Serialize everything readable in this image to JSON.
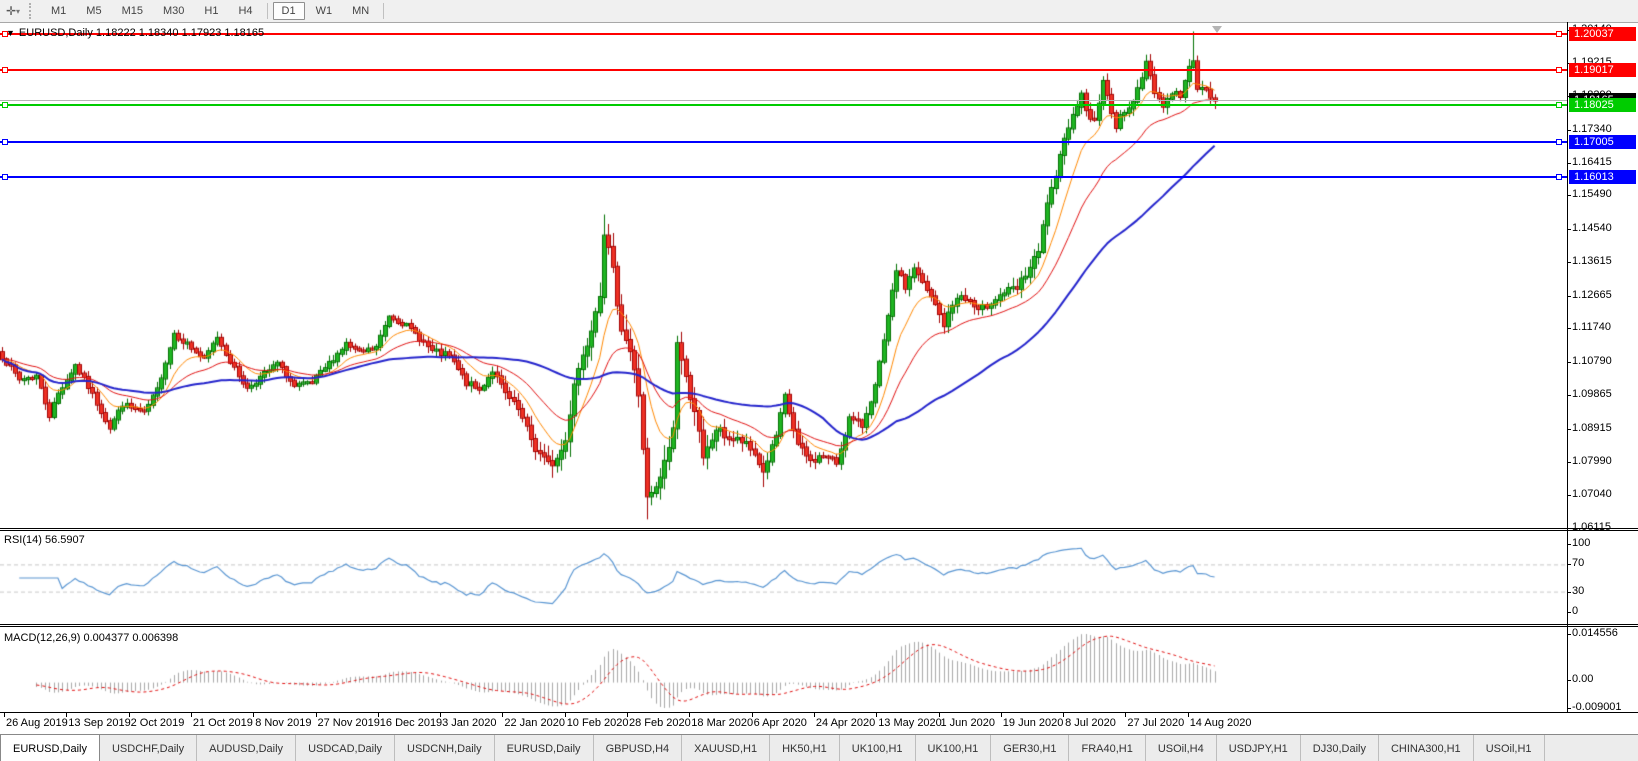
{
  "toolbar": {
    "cursor_icon": "crosshair-tool-icon",
    "timeframes": [
      "M1",
      "M5",
      "M15",
      "M30",
      "H1",
      "H4",
      "D1",
      "W1",
      "MN"
    ],
    "active_timeframe": "D1"
  },
  "chart": {
    "title": "EURUSD,Daily  1.18222 1.18340 1.17923 1.18165",
    "symbol": "EURUSD,Daily",
    "ohlc": {
      "open": "1.18222",
      "high": "1.18340",
      "low": "1.17923",
      "close": "1.18165"
    }
  },
  "chart_data": {
    "type": "candlestick",
    "title": "EURUSD,Daily",
    "main": {
      "y_ticks": [
        "1.20140",
        "1.19215",
        "1.18290",
        "1.17340",
        "1.16415",
        "1.15490",
        "1.14540",
        "1.13615",
        "1.12665",
        "1.11740",
        "1.10790",
        "1.09865",
        "1.08915",
        "1.07990",
        "1.07040",
        "1.06115"
      ],
      "levels": [
        {
          "price": 1.20037,
          "label": "1.20037",
          "color": "#ff0000"
        },
        {
          "price": 1.19017,
          "label": "1.19017",
          "color": "#ff0000"
        },
        {
          "price": 1.18025,
          "label": "1.18025",
          "color": "#00cc00"
        },
        {
          "price": 1.17005,
          "label": "1.17005",
          "color": "#0000ff"
        },
        {
          "price": 1.16013,
          "label": "1.16013",
          "color": "#0000ff"
        }
      ],
      "current_price": {
        "value": 1.18165,
        "label": "1.18165",
        "line_color": "#b4b4b4",
        "badge_color": "#000000"
      },
      "candle_count": 283,
      "close_keyframes": [
        [
          0,
          1.1095
        ],
        [
          4,
          1.103
        ],
        [
          8,
          1.104
        ],
        [
          11,
          1.093
        ],
        [
          13,
          1.099
        ],
        [
          17,
          1.107
        ],
        [
          20,
          1.101
        ],
        [
          25,
          1.0895
        ],
        [
          28,
          1.096
        ],
        [
          33,
          1.0935
        ],
        [
          36,
          1.1
        ],
        [
          40,
          1.116
        ],
        [
          43,
          1.113
        ],
        [
          47,
          1.1085
        ],
        [
          50,
          1.115
        ],
        [
          54,
          1.106
        ],
        [
          57,
          1.1005
        ],
        [
          61,
          1.1045
        ],
        [
          64,
          1.1075
        ],
        [
          68,
          1.101
        ],
        [
          72,
          1.102
        ],
        [
          76,
          1.1075
        ],
        [
          80,
          1.113
        ],
        [
          83,
          1.1105
        ],
        [
          87,
          1.112
        ],
        [
          90,
          1.121
        ],
        [
          93,
          1.119
        ],
        [
          96,
          1.116
        ],
        [
          100,
          1.111
        ],
        [
          104,
          1.1095
        ],
        [
          108,
          1.102
        ],
        [
          111,
          1.1
        ],
        [
          114,
          1.1055
        ],
        [
          117,
          1.099
        ],
        [
          120,
          1.0945
        ],
        [
          124,
          1.0835
        ],
        [
          127,
          1.079
        ],
        [
          129,
          1.0805
        ],
        [
          131,
          1.0855
        ],
        [
          133,
          1.1025
        ],
        [
          136,
          1.1135
        ],
        [
          139,
          1.128
        ],
        [
          140,
          1.145
        ],
        [
          142,
          1.133
        ],
        [
          144,
          1.118
        ],
        [
          146,
          1.111
        ],
        [
          148,
          1.099
        ],
        [
          150,
          1.069
        ],
        [
          152,
          1.0715
        ],
        [
          154,
          1.079
        ],
        [
          156,
          1.089
        ],
        [
          157,
          1.114
        ],
        [
          159,
          1.103
        ],
        [
          161,
          1.095
        ],
        [
          163,
          1.08
        ],
        [
          166,
          1.089
        ],
        [
          169,
          1.0865
        ],
        [
          172,
          1.0855
        ],
        [
          175,
          1.082
        ],
        [
          177,
          1.077
        ],
        [
          180,
          1.087
        ],
        [
          182,
          1.098
        ],
        [
          185,
          1.0845
        ],
        [
          188,
          1.08
        ],
        [
          191,
          1.0815
        ],
        [
          194,
          1.0795
        ],
        [
          197,
          1.092
        ],
        [
          200,
          1.09
        ],
        [
          203,
          1.101
        ],
        [
          205,
          1.1135
        ],
        [
          208,
          1.134
        ],
        [
          210,
          1.129
        ],
        [
          212,
          1.1345
        ],
        [
          214,
          1.13
        ],
        [
          217,
          1.124
        ],
        [
          219,
          1.1185
        ],
        [
          222,
          1.1265
        ],
        [
          225,
          1.125
        ],
        [
          227,
          1.122
        ],
        [
          230,
          1.125
        ],
        [
          233,
          1.1275
        ],
        [
          236,
          1.1285
        ],
        [
          239,
          1.1345
        ],
        [
          241,
          1.1385
        ],
        [
          243,
          1.153
        ],
        [
          245,
          1.159
        ],
        [
          247,
          1.172
        ],
        [
          249,
          1.177
        ],
        [
          251,
          1.1845
        ],
        [
          252,
          1.178
        ],
        [
          254,
          1.176
        ],
        [
          256,
          1.1865
        ],
        [
          258,
          1.179
        ],
        [
          259,
          1.174
        ],
        [
          261,
          1.179
        ],
        [
          263,
          1.1815
        ],
        [
          265,
          1.1875
        ],
        [
          266,
          1.193
        ],
        [
          268,
          1.1845
        ],
        [
          270,
          1.18
        ],
        [
          272,
          1.184
        ],
        [
          274,
          1.183
        ],
        [
          276,
          1.1905
        ],
        [
          277,
          1.1935
        ],
        [
          278,
          1.1855
        ],
        [
          280,
          1.184
        ],
        [
          282,
          1.18165
        ]
      ],
      "volatility_keyframes": [
        [
          0,
          0.002
        ],
        [
          90,
          0.0018
        ],
        [
          120,
          0.0024
        ],
        [
          133,
          0.0046
        ],
        [
          160,
          0.0046
        ],
        [
          170,
          0.0028
        ],
        [
          200,
          0.0022
        ],
        [
          240,
          0.003
        ],
        [
          282,
          0.0022
        ]
      ],
      "anchor_highs": [
        [
          140,
          1.1495
        ],
        [
          277,
          1.2011
        ]
      ],
      "anchor_lows": [
        [
          150,
          1.0636
        ],
        [
          177,
          1.0727
        ]
      ],
      "last_candle": [
        1.18222,
        1.1834,
        1.17923,
        1.18165
      ],
      "moving_averages": [
        {
          "period": 10,
          "type": "ema",
          "color": "#ff8800",
          "width": 1
        },
        {
          "period": 24,
          "type": "ema",
          "color": "#e01010",
          "width": 1
        },
        {
          "period": 52,
          "type": "sma",
          "color": "#2424cc",
          "width": 2
        }
      ],
      "up_color": "#1fb522",
      "up_border": "#007000",
      "down_color": "#ee3124",
      "down_border": "#a50000"
    },
    "rsi": {
      "label": "RSI(14) 56.5907",
      "period": 14,
      "value": 56.5907,
      "ticks": [
        "100",
        "70",
        "30",
        "0"
      ],
      "level_lines": [
        70,
        30
      ],
      "line_color": "#5a96d2"
    },
    "macd": {
      "label": "MACD(12,26,9) 0.004377 0.006398",
      "macd_value": 0.004377,
      "signal_value": 0.006398,
      "ticks": [
        "0.014556",
        "0.00",
        "-0.009001"
      ],
      "range": [
        -0.009001,
        0.014556
      ],
      "histogram_color": "#a8a8a8",
      "signal_color": "#e01010"
    },
    "x_labels": [
      "26 Aug 2019",
      "13 Sep 2019",
      "2 Oct 2019",
      "21 Oct 2019",
      "8 Nov 2019",
      "27 Nov 2019",
      "16 Dec 2019",
      "3 Jan 2020",
      "22 Jan 2020",
      "10 Feb 2020",
      "28 Feb 2020",
      "18 Mar 2020",
      "6 Apr 2020",
      "24 Apr 2020",
      "13 May 2020",
      "1 Jun 2020",
      "19 Jun 2020",
      "8 Jul 2020",
      "27 Jul 2020",
      "14 Aug 2020"
    ]
  },
  "tabs": [
    "EURUSD,Daily",
    "USDCHF,Daily",
    "AUDUSD,Daily",
    "USDCAD,Daily",
    "USDCNH,Daily",
    "EURUSD,Daily",
    "GBPUSD,H4",
    "XAUUSD,H1",
    "HK50,H1",
    "UK100,H1",
    "UK100,H1",
    "GER30,H1",
    "FRA40,H1",
    "USOil,H4",
    "USDJPY,H1",
    "DJ30,Daily",
    "CHINA300,H1",
    "USOil,H1"
  ],
  "active_tab": "EURUSD,Daily",
  "icons": {
    "toolbar_tool": "✛",
    "toolbar_caret": "▾",
    "title_marker": "▼"
  }
}
